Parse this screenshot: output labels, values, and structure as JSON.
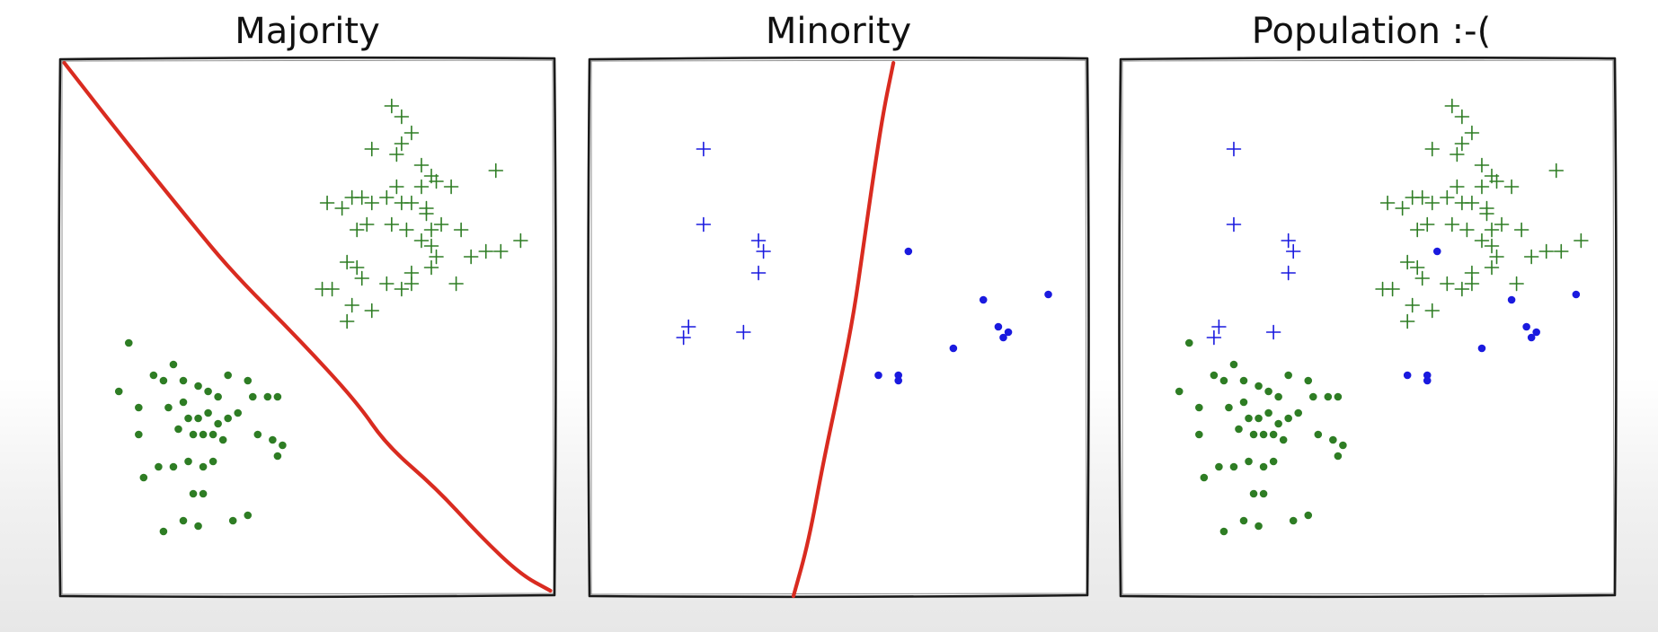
{
  "panels": [
    {
      "title": "Majority",
      "boundary": [
        [
          0.01,
          0.99
        ],
        [
          0.12,
          0.86
        ],
        [
          0.26,
          0.7
        ],
        [
          0.35,
          0.6
        ],
        [
          0.48,
          0.48
        ],
        [
          0.6,
          0.36
        ],
        [
          0.66,
          0.28
        ],
        [
          0.76,
          0.2
        ],
        [
          0.85,
          0.11
        ],
        [
          0.93,
          0.04
        ],
        [
          0.99,
          0.01
        ]
      ],
      "plus": [
        [
          0.67,
          0.91
        ],
        [
          0.69,
          0.89
        ],
        [
          0.63,
          0.83
        ],
        [
          0.69,
          0.84
        ],
        [
          0.71,
          0.86
        ],
        [
          0.68,
          0.82
        ],
        [
          0.73,
          0.8
        ],
        [
          0.88,
          0.79
        ],
        [
          0.75,
          0.78
        ],
        [
          0.76,
          0.77
        ],
        [
          0.79,
          0.76
        ],
        [
          0.54,
          0.73
        ],
        [
          0.57,
          0.72
        ],
        [
          0.59,
          0.74
        ],
        [
          0.61,
          0.74
        ],
        [
          0.63,
          0.73
        ],
        [
          0.66,
          0.74
        ],
        [
          0.69,
          0.73
        ],
        [
          0.71,
          0.73
        ],
        [
          0.74,
          0.72
        ],
        [
          0.73,
          0.76
        ],
        [
          0.68,
          0.76
        ],
        [
          0.74,
          0.71
        ],
        [
          0.62,
          0.69
        ],
        [
          0.67,
          0.69
        ],
        [
          0.7,
          0.68
        ],
        [
          0.75,
          0.68
        ],
        [
          0.77,
          0.69
        ],
        [
          0.6,
          0.68
        ],
        [
          0.81,
          0.68
        ],
        [
          0.73,
          0.66
        ],
        [
          0.75,
          0.65
        ],
        [
          0.76,
          0.63
        ],
        [
          0.83,
          0.63
        ],
        [
          0.86,
          0.64
        ],
        [
          0.89,
          0.64
        ],
        [
          0.93,
          0.66
        ],
        [
          0.58,
          0.62
        ],
        [
          0.6,
          0.61
        ],
        [
          0.75,
          0.61
        ],
        [
          0.61,
          0.59
        ],
        [
          0.71,
          0.6
        ],
        [
          0.66,
          0.58
        ],
        [
          0.71,
          0.58
        ],
        [
          0.8,
          0.58
        ],
        [
          0.53,
          0.57
        ],
        [
          0.55,
          0.57
        ],
        [
          0.69,
          0.57
        ],
        [
          0.59,
          0.54
        ],
        [
          0.63,
          0.53
        ],
        [
          0.58,
          0.51
        ]
      ],
      "dots": [
        [
          0.14,
          0.47
        ],
        [
          0.19,
          0.41
        ],
        [
          0.23,
          0.43
        ],
        [
          0.21,
          0.4
        ],
        [
          0.25,
          0.4
        ],
        [
          0.28,
          0.39
        ],
        [
          0.3,
          0.38
        ],
        [
          0.32,
          0.37
        ],
        [
          0.34,
          0.41
        ],
        [
          0.38,
          0.4
        ],
        [
          0.39,
          0.37
        ],
        [
          0.42,
          0.37
        ],
        [
          0.44,
          0.37
        ],
        [
          0.12,
          0.38
        ],
        [
          0.25,
          0.36
        ],
        [
          0.22,
          0.35
        ],
        [
          0.26,
          0.33
        ],
        [
          0.28,
          0.33
        ],
        [
          0.3,
          0.34
        ],
        [
          0.32,
          0.32
        ],
        [
          0.34,
          0.33
        ],
        [
          0.36,
          0.34
        ],
        [
          0.24,
          0.31
        ],
        [
          0.27,
          0.3
        ],
        [
          0.29,
          0.3
        ],
        [
          0.31,
          0.3
        ],
        [
          0.33,
          0.29
        ],
        [
          0.16,
          0.3
        ],
        [
          0.43,
          0.29
        ],
        [
          0.45,
          0.28
        ],
        [
          0.44,
          0.26
        ],
        [
          0.2,
          0.24
        ],
        [
          0.23,
          0.24
        ],
        [
          0.26,
          0.25
        ],
        [
          0.29,
          0.24
        ],
        [
          0.31,
          0.25
        ],
        [
          0.17,
          0.22
        ],
        [
          0.27,
          0.19
        ],
        [
          0.29,
          0.19
        ],
        [
          0.25,
          0.14
        ],
        [
          0.28,
          0.13
        ],
        [
          0.35,
          0.14
        ],
        [
          0.38,
          0.15
        ],
        [
          0.21,
          0.12
        ],
        [
          0.16,
          0.35
        ],
        [
          0.4,
          0.3
        ]
      ]
    },
    {
      "title": "Minority",
      "boundary": [
        [
          0.61,
          0.99
        ],
        [
          0.59,
          0.9
        ],
        [
          0.57,
          0.78
        ],
        [
          0.55,
          0.65
        ],
        [
          0.53,
          0.52
        ],
        [
          0.5,
          0.38
        ],
        [
          0.47,
          0.25
        ],
        [
          0.44,
          0.1
        ],
        [
          0.41,
          0.0
        ]
      ],
      "plus": [
        [
          0.23,
          0.83
        ],
        [
          0.23,
          0.69
        ],
        [
          0.34,
          0.66
        ],
        [
          0.35,
          0.64
        ],
        [
          0.34,
          0.6
        ],
        [
          0.2,
          0.5
        ],
        [
          0.19,
          0.48
        ],
        [
          0.31,
          0.49
        ]
      ],
      "dots": [
        [
          0.64,
          0.64
        ],
        [
          0.79,
          0.55
        ],
        [
          0.92,
          0.56
        ],
        [
          0.84,
          0.49
        ],
        [
          0.82,
          0.5
        ],
        [
          0.83,
          0.48
        ],
        [
          0.73,
          0.46
        ],
        [
          0.58,
          0.41
        ],
        [
          0.62,
          0.41
        ],
        [
          0.62,
          0.4
        ]
      ]
    },
    {
      "title": "Population :-(",
      "boundary": [],
      "plus": [
        [
          0.67,
          0.91
        ],
        [
          0.69,
          0.89
        ],
        [
          0.63,
          0.83
        ],
        [
          0.69,
          0.84
        ],
        [
          0.71,
          0.86
        ],
        [
          0.68,
          0.82
        ],
        [
          0.73,
          0.8
        ],
        [
          0.88,
          0.79
        ],
        [
          0.75,
          0.78
        ],
        [
          0.76,
          0.77
        ],
        [
          0.79,
          0.76
        ],
        [
          0.54,
          0.73
        ],
        [
          0.57,
          0.72
        ],
        [
          0.59,
          0.74
        ],
        [
          0.61,
          0.74
        ],
        [
          0.63,
          0.73
        ],
        [
          0.66,
          0.74
        ],
        [
          0.69,
          0.73
        ],
        [
          0.71,
          0.73
        ],
        [
          0.74,
          0.72
        ],
        [
          0.73,
          0.76
        ],
        [
          0.68,
          0.76
        ],
        [
          0.74,
          0.71
        ],
        [
          0.62,
          0.69
        ],
        [
          0.67,
          0.69
        ],
        [
          0.7,
          0.68
        ],
        [
          0.75,
          0.68
        ],
        [
          0.77,
          0.69
        ],
        [
          0.6,
          0.68
        ],
        [
          0.81,
          0.68
        ],
        [
          0.73,
          0.66
        ],
        [
          0.75,
          0.65
        ],
        [
          0.76,
          0.63
        ],
        [
          0.83,
          0.63
        ],
        [
          0.86,
          0.64
        ],
        [
          0.89,
          0.64
        ],
        [
          0.93,
          0.66
        ],
        [
          0.58,
          0.62
        ],
        [
          0.6,
          0.61
        ],
        [
          0.75,
          0.61
        ],
        [
          0.61,
          0.59
        ],
        [
          0.71,
          0.6
        ],
        [
          0.66,
          0.58
        ],
        [
          0.71,
          0.58
        ],
        [
          0.8,
          0.58
        ],
        [
          0.53,
          0.57
        ],
        [
          0.55,
          0.57
        ],
        [
          0.69,
          0.57
        ],
        [
          0.59,
          0.54
        ],
        [
          0.63,
          0.53
        ],
        [
          0.58,
          0.51
        ]
      ],
      "plus_blue": [
        [
          0.23,
          0.83
        ],
        [
          0.23,
          0.69
        ],
        [
          0.34,
          0.66
        ],
        [
          0.35,
          0.64
        ],
        [
          0.34,
          0.6
        ],
        [
          0.2,
          0.5
        ],
        [
          0.19,
          0.48
        ],
        [
          0.31,
          0.49
        ]
      ],
      "dots": [
        [
          0.14,
          0.47
        ],
        [
          0.19,
          0.41
        ],
        [
          0.23,
          0.43
        ],
        [
          0.21,
          0.4
        ],
        [
          0.25,
          0.4
        ],
        [
          0.28,
          0.39
        ],
        [
          0.3,
          0.38
        ],
        [
          0.32,
          0.37
        ],
        [
          0.34,
          0.41
        ],
        [
          0.38,
          0.4
        ],
        [
          0.39,
          0.37
        ],
        [
          0.42,
          0.37
        ],
        [
          0.44,
          0.37
        ],
        [
          0.12,
          0.38
        ],
        [
          0.25,
          0.36
        ],
        [
          0.22,
          0.35
        ],
        [
          0.26,
          0.33
        ],
        [
          0.28,
          0.33
        ],
        [
          0.3,
          0.34
        ],
        [
          0.32,
          0.32
        ],
        [
          0.34,
          0.33
        ],
        [
          0.36,
          0.34
        ],
        [
          0.24,
          0.31
        ],
        [
          0.27,
          0.3
        ],
        [
          0.29,
          0.3
        ],
        [
          0.31,
          0.3
        ],
        [
          0.33,
          0.29
        ],
        [
          0.16,
          0.3
        ],
        [
          0.43,
          0.29
        ],
        [
          0.45,
          0.28
        ],
        [
          0.44,
          0.26
        ],
        [
          0.2,
          0.24
        ],
        [
          0.23,
          0.24
        ],
        [
          0.26,
          0.25
        ],
        [
          0.29,
          0.24
        ],
        [
          0.31,
          0.25
        ],
        [
          0.17,
          0.22
        ],
        [
          0.27,
          0.19
        ],
        [
          0.29,
          0.19
        ],
        [
          0.25,
          0.14
        ],
        [
          0.28,
          0.13
        ],
        [
          0.35,
          0.14
        ],
        [
          0.38,
          0.15
        ],
        [
          0.21,
          0.12
        ],
        [
          0.16,
          0.35
        ],
        [
          0.4,
          0.3
        ]
      ],
      "dots_blue": [
        [
          0.64,
          0.64
        ],
        [
          0.79,
          0.55
        ],
        [
          0.92,
          0.56
        ],
        [
          0.84,
          0.49
        ],
        [
          0.82,
          0.5
        ],
        [
          0.83,
          0.48
        ],
        [
          0.73,
          0.46
        ],
        [
          0.58,
          0.41
        ],
        [
          0.62,
          0.41
        ],
        [
          0.62,
          0.4
        ]
      ]
    }
  ],
  "colors": {
    "majority": "#2e7d24",
    "minority": "#1a1adf",
    "boundary": "#d92b20",
    "frame": "#1a1a1a"
  }
}
